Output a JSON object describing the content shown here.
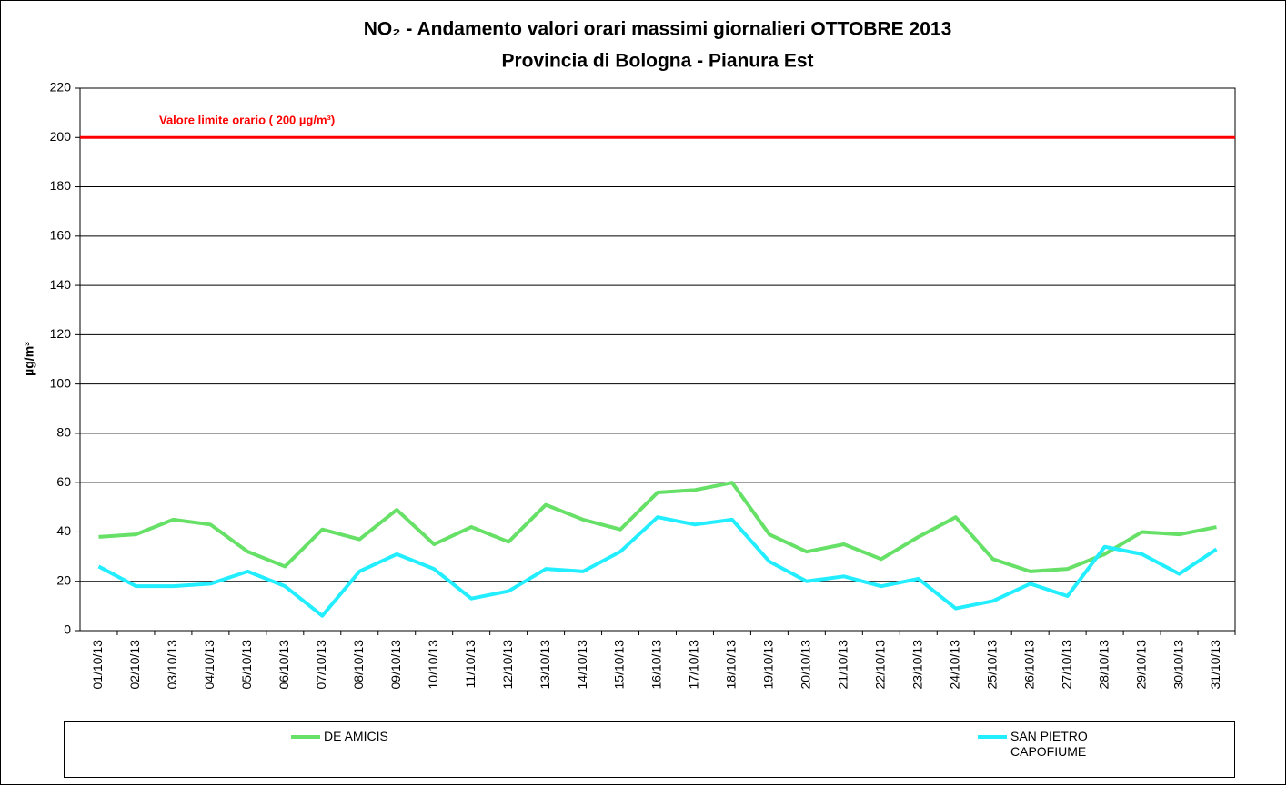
{
  "chart_data": {
    "type": "line",
    "title": "NO₂ - Andamento valori orari massimi giornalieri OTTOBRE 2013",
    "subtitle": "Provincia di Bologna - Pianura Est",
    "y_label": "µg/m³",
    "categories": [
      "01/10/13",
      "02/10/13",
      "03/10/13",
      "04/10/13",
      "05/10/13",
      "06/10/13",
      "07/10/13",
      "08/10/13",
      "09/10/13",
      "10/10/13",
      "11/10/13",
      "12/10/13",
      "13/10/13",
      "14/10/13",
      "15/10/13",
      "16/10/13",
      "17/10/13",
      "18/10/13",
      "19/10/13",
      "20/10/13",
      "21/10/13",
      "22/10/13",
      "23/10/13",
      "24/10/13",
      "25/10/13",
      "26/10/13",
      "27/10/13",
      "28/10/13",
      "29/10/13",
      "30/10/13",
      "31/10/13"
    ],
    "series": [
      {
        "name": "DE AMICIS",
        "color": "#66e066",
        "values": [
          38,
          39,
          45,
          43,
          32,
          26,
          41,
          37,
          49,
          35,
          42,
          36,
          51,
          45,
          41,
          56,
          57,
          60,
          39,
          32,
          35,
          29,
          38,
          46,
          29,
          24,
          25,
          31,
          40,
          39,
          42
        ]
      },
      {
        "name": "SAN PIETRO CAPOFIUME",
        "color": "#22eeff",
        "values": [
          26,
          18,
          18,
          19,
          24,
          18,
          6,
          24,
          31,
          25,
          13,
          16,
          25,
          24,
          32,
          46,
          43,
          45,
          28,
          20,
          22,
          18,
          21,
          9,
          12,
          19,
          14,
          34,
          31,
          23,
          33
        ]
      }
    ],
    "limit_line": {
      "value": 200,
      "label": "Valore limite orario ( 200 µg/m³)",
      "color": "#ff0000"
    },
    "ylim": [
      0,
      220
    ],
    "yticks": [
      0,
      20,
      40,
      60,
      80,
      100,
      120,
      140,
      160,
      180,
      200,
      220
    ],
    "grid": true
  }
}
